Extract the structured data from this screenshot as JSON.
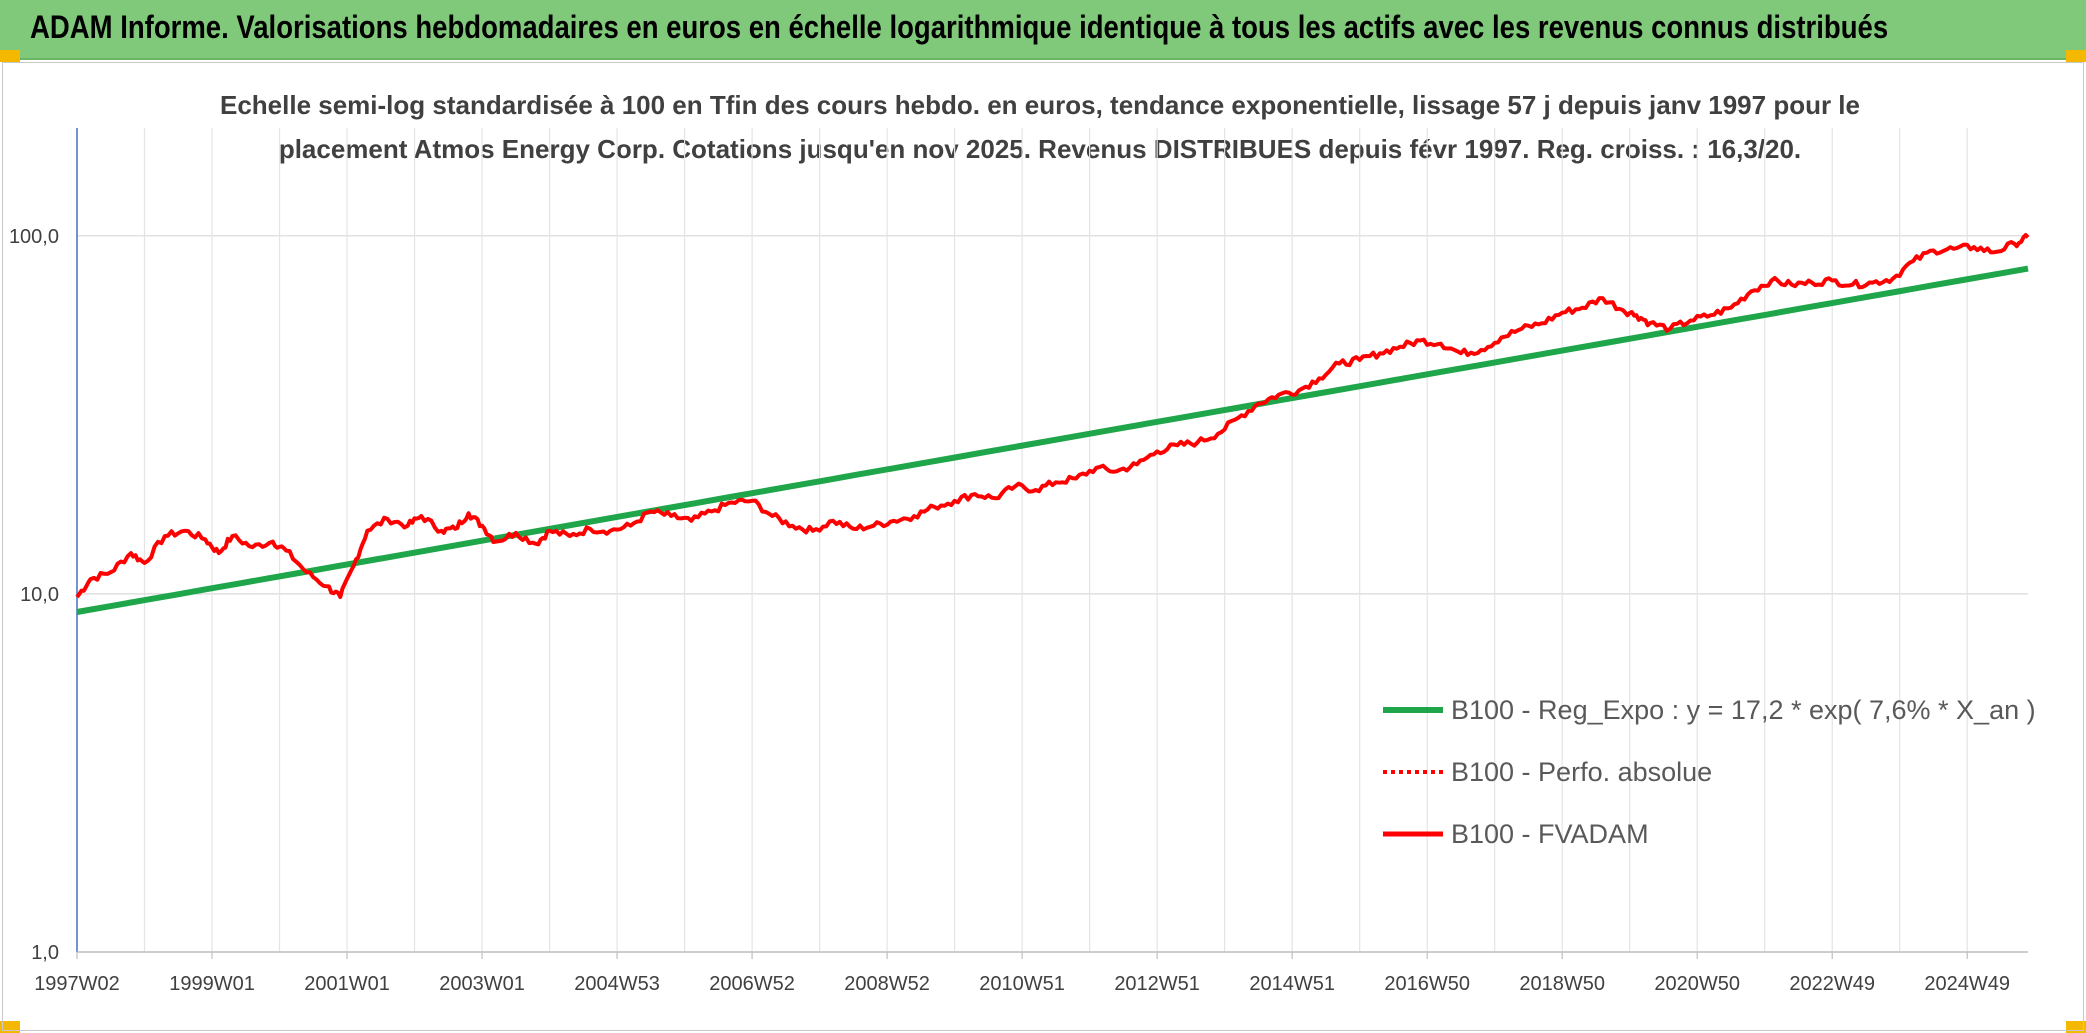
{
  "header": {
    "title": "ADAM Informe. Valorisations hebdomadaires en euros en échelle logarithmique identique à tous les actifs avec les revenus connus distribués"
  },
  "chart_data": {
    "type": "line",
    "subtitle_line1": "Echelle semi-log standardisée à 100 en Tfin des cours hebdo. en euros, tendance exponentielle, lissage 57 j depuis janv 1997 pour le",
    "subtitle_line2": "placement Atmos Energy Corp. Cotations jusqu'en nov 2025. Revenus DISTRIBUES depuis févr 1997. Reg. croiss. : 16,3/20.",
    "y_scale": "log",
    "ylim": [
      1,
      200
    ],
    "y_ticks": [
      {
        "value": 1,
        "label": "1,0"
      },
      {
        "value": 10,
        "label": "10,0"
      },
      {
        "value": 100,
        "label": "100,0"
      }
    ],
    "xlim": [
      1997.0,
      2025.9
    ],
    "x_ticks": [
      {
        "value": 1997.0,
        "label": "1997W02"
      },
      {
        "value": 1999.0,
        "label": "1999W01"
      },
      {
        "value": 2001.0,
        "label": "2001W01"
      },
      {
        "value": 2003.0,
        "label": "2003W01"
      },
      {
        "value": 2005.0,
        "label": "2004W53"
      },
      {
        "value": 2007.0,
        "label": "2006W52"
      },
      {
        "value": 2009.0,
        "label": "2008W52"
      },
      {
        "value": 2011.0,
        "label": "2010W51"
      },
      {
        "value": 2013.0,
        "label": "2012W51"
      },
      {
        "value": 2015.0,
        "label": "2014W51"
      },
      {
        "value": 2017.0,
        "label": "2016W50"
      },
      {
        "value": 2019.0,
        "label": "2018W50"
      },
      {
        "value": 2021.0,
        "label": "2020W50"
      },
      {
        "value": 2023.0,
        "label": "2022W49"
      },
      {
        "value": 2025.0,
        "label": "2024W49"
      }
    ],
    "grid": true,
    "legend_position": "bottom-right",
    "series": [
      {
        "name": "B100 - Reg_Expo : y = 17,2 * exp( 7,6% *  X_an )",
        "color": "#1fa64a",
        "style": "solid-thick",
        "x": [
          1997.0,
          2025.9
        ],
        "y": [
          8.9,
          81
        ]
      },
      {
        "name": "B100 - Perfo. absolue",
        "color": "#ff0000",
        "style": "dotted",
        "x": [],
        "y": []
      },
      {
        "name": "B100 - FVADAM",
        "color": "#ff0000",
        "style": "solid",
        "x": [
          1997.0,
          1997.2,
          1997.5,
          1997.8,
          1998.0,
          1998.3,
          1998.6,
          1998.9,
          1999.1,
          1999.3,
          1999.6,
          1999.9,
          2000.1,
          2000.4,
          2000.7,
          2000.9,
          2001.1,
          2001.3,
          2001.6,
          2001.9,
          2002.1,
          2002.4,
          2002.6,
          2002.8,
          2003.0,
          2003.2,
          2003.5,
          2003.8,
          2004.0,
          2004.3,
          2004.6,
          2004.9,
          2005.2,
          2005.5,
          2005.8,
          2006.1,
          2006.4,
          2006.7,
          2007.0,
          2007.3,
          2007.6,
          2007.9,
          2008.2,
          2008.5,
          2008.8,
          2009.1,
          2009.4,
          2009.7,
          2010.0,
          2010.3,
          2010.6,
          2010.9,
          2011.2,
          2011.5,
          2011.8,
          2012.1,
          2012.4,
          2012.7,
          2013.0,
          2013.3,
          2013.6,
          2013.9,
          2014.2,
          2014.5,
          2014.8,
          2015.1,
          2015.4,
          2015.7,
          2016.0,
          2016.3,
          2016.6,
          2016.9,
          2017.2,
          2017.5,
          2017.8,
          2018.1,
          2018.4,
          2018.7,
          2019.0,
          2019.3,
          2019.6,
          2019.9,
          2020.1,
          2020.3,
          2020.6,
          2020.9,
          2021.2,
          2021.5,
          2021.8,
          2022.1,
          2022.4,
          2022.7,
          2023.0,
          2023.3,
          2023.6,
          2023.9,
          2024.2,
          2024.5,
          2024.8,
          2025.1,
          2025.4,
          2025.7,
          2025.9
        ],
        "y": [
          9.8,
          11.0,
          11.5,
          13.0,
          12.2,
          14.5,
          15.0,
          14.2,
          13.0,
          14.5,
          13.5,
          14.0,
          13.2,
          11.5,
          10.5,
          9.8,
          12.0,
          15.0,
          16.2,
          15.5,
          16.5,
          15.0,
          15.2,
          16.8,
          15.5,
          14.0,
          14.8,
          13.8,
          15.0,
          14.5,
          15.2,
          15.0,
          15.5,
          17.0,
          16.5,
          16.0,
          17.0,
          18.0,
          18.2,
          16.5,
          15.5,
          15.0,
          16.0,
          15.2,
          15.5,
          16.0,
          16.5,
          17.5,
          18.2,
          19.0,
          18.5,
          20.0,
          19.5,
          20.5,
          21.0,
          22.5,
          22.0,
          23.0,
          25.0,
          26.0,
          26.5,
          28.0,
          31.0,
          34.0,
          36.0,
          37.0,
          40.0,
          44.0,
          45.0,
          47.0,
          49.0,
          51.0,
          50.0,
          47.0,
          48.0,
          52.0,
          55.0,
          57.0,
          61.0,
          63.0,
          67.0,
          62.0,
          60.0,
          57.0,
          55.0,
          58.0,
          60.0,
          63.0,
          70.0,
          75.0,
          73.0,
          74.0,
          75.0,
          73.0,
          74.0,
          76.0,
          85.0,
          91.0,
          92.0,
          93.0,
          90.0,
          95.0,
          99.0
        ]
      }
    ]
  }
}
